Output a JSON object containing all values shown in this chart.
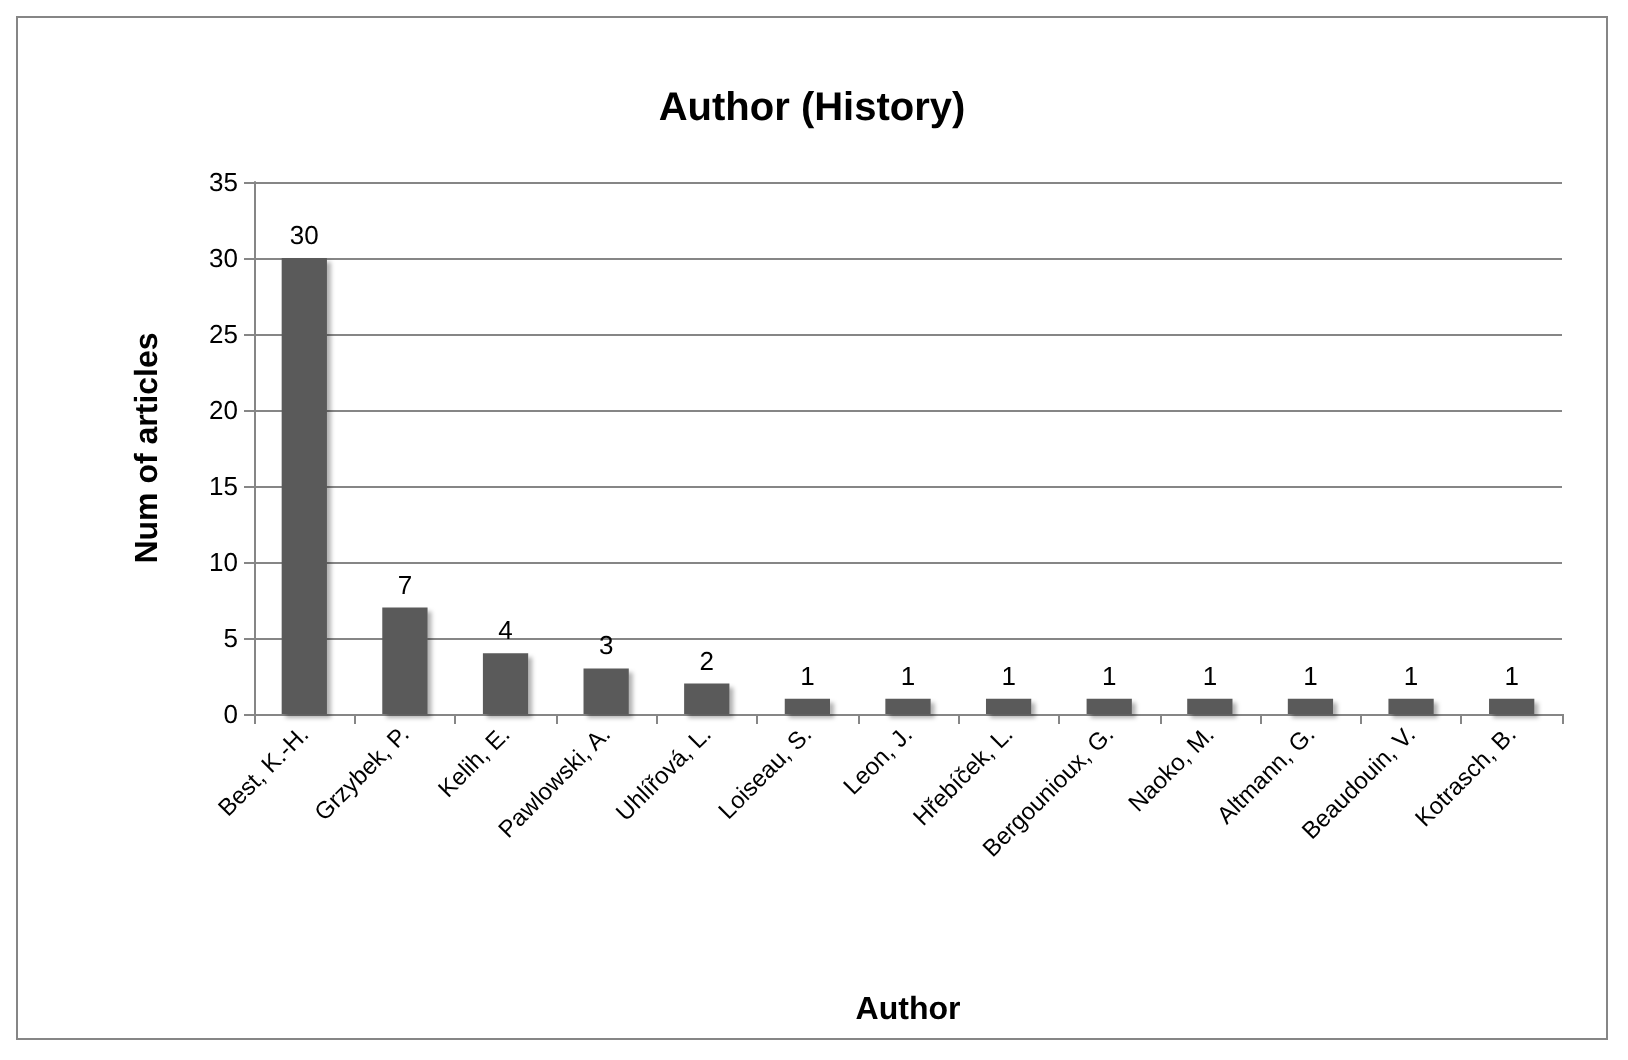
{
  "chart_data": {
    "type": "bar",
    "title": "Author (History)",
    "xlabel": "Author",
    "ylabel": "Num of articles",
    "categories": [
      "Best, K.-H.",
      "Grzybek, P.",
      "Kelih, E.",
      "Pawlowski, A.",
      "Uhlířová, L.",
      "Loiseau, S.",
      "Leon, J.",
      "Hřebíček, L.",
      "Bergounioux, G.",
      "Naoko, M.",
      "Altmann, G.",
      "Beaudouin, V.",
      "Kotrasch, B."
    ],
    "values": [
      30,
      7,
      4,
      3,
      2,
      1,
      1,
      1,
      1,
      1,
      1,
      1,
      1
    ],
    "color": "#5a5a5a",
    "ylim": [
      0,
      35
    ],
    "yticks": [
      0,
      5,
      10,
      15,
      20,
      25,
      30,
      35
    ],
    "grid": "y",
    "data_labels": true
  }
}
